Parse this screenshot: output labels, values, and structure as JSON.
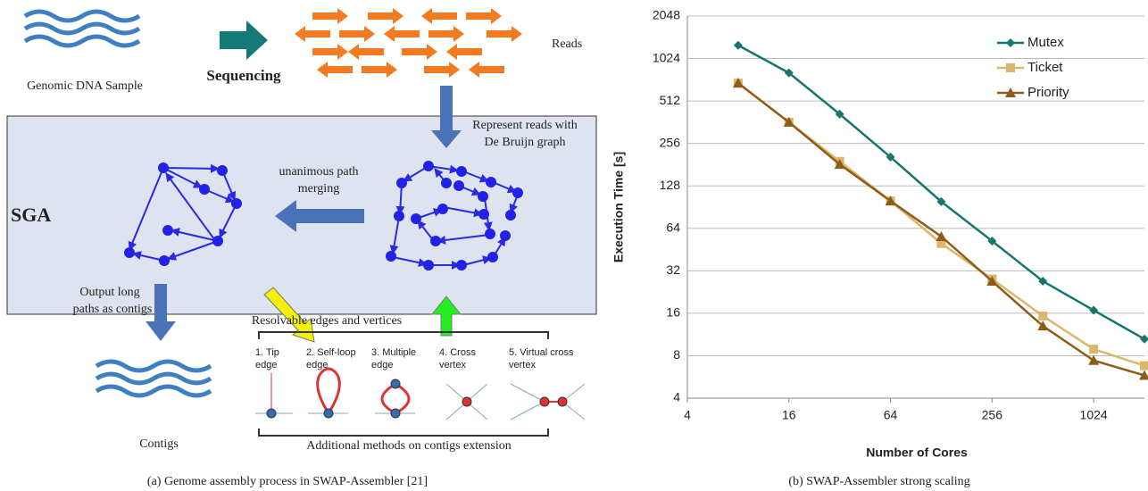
{
  "diagram": {
    "sample": "Genomic DNA Sample",
    "sequencing": "Sequencing",
    "reads": "Reads",
    "represent": [
      "Represent reads with",
      "De Bruijn graph"
    ],
    "merging": [
      "unanimous path",
      "merging"
    ],
    "sga": "SGA",
    "output": [
      "Output  long",
      "paths as contigs"
    ],
    "resolvable": "Resolvable edges and vertices",
    "cases": [
      [
        "1. Tip",
        "edge"
      ],
      [
        "2. Self-loop",
        "edge"
      ],
      [
        "3. Multiple",
        "edge"
      ],
      [
        "4. Cross",
        "vertex"
      ],
      [
        "5. Virtual cross",
        "vertex"
      ]
    ],
    "contigs": "Contigs",
    "additional": "Additional  methods on contigs extension",
    "caption": "(a) Genome assembly process in SWAP-Assembler [21]"
  },
  "chart_data": {
    "type": "line",
    "caption": "(b) SWAP-Assembler strong scaling",
    "xlabel": "Number of Cores",
    "ylabel": "Execution Time [s]",
    "x": [
      8,
      16,
      32,
      64,
      128,
      256,
      512,
      1024,
      2048
    ],
    "series": [
      {
        "name": "Mutex",
        "color": "#17766b",
        "marker": "diamond",
        "values": [
          1270,
          810,
          413,
          205,
          99,
          52,
          27,
          16.8,
          10.5
        ]
      },
      {
        "name": "Ticket",
        "color": "#dcb66b",
        "marker": "square",
        "values": [
          685,
          362,
          191,
          100,
          50,
          28,
          15.3,
          8.9,
          6.8
        ]
      },
      {
        "name": "Priority",
        "color": "#8c5c1a",
        "marker": "triangle",
        "values": [
          685,
          362,
          182,
          100,
          56,
          27,
          13,
          7.4,
          5.8
        ]
      }
    ],
    "xlim": [
      4,
      2048
    ],
    "xticks": [
      4,
      16,
      64,
      256,
      1024
    ],
    "xlog": true,
    "ylim": [
      4,
      2048
    ],
    "yticks": [
      4,
      8,
      16,
      32,
      64,
      128,
      256,
      512,
      1024,
      2048
    ],
    "ylog": true,
    "grid": true,
    "legend": "top-right"
  }
}
